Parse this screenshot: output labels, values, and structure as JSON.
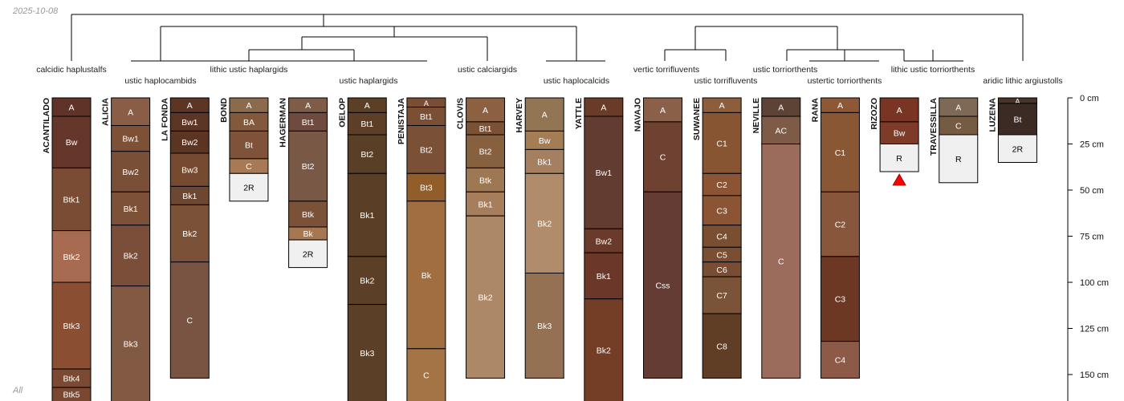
{
  "header": {
    "date": "2025-10-08"
  },
  "footer": {
    "subset_label": "All"
  },
  "depth_axis": {
    "unit": "cm",
    "ticks": [
      0,
      25,
      50,
      75,
      100,
      125,
      150
    ]
  },
  "chart_data": {
    "type": "soil-profile-sketch",
    "depth_unit": "cm",
    "dendrogram_labels": [
      "calcidic haplustalfs",
      "ustic haplocambids",
      "lithic ustic haplargids",
      "ustic haplargids",
      "ustic calciargids",
      "ustic haplocalcids",
      "vertic torrifluvents",
      "ustic torrifluvents",
      "ustic torriorthents",
      "ustertic torriorthents",
      "lithic ustic torriorthents",
      "aridic lithic argiustolls"
    ],
    "profiles": [
      {
        "name": "ACANTILADO",
        "horizons": [
          {
            "name": "A",
            "top": 0,
            "bottom": 10,
            "color": "#5f3328"
          },
          {
            "name": "Bw",
            "top": 10,
            "bottom": 38,
            "color": "#65372b"
          },
          {
            "name": "Btk1",
            "top": 38,
            "bottom": 72,
            "color": "#7a4c34"
          },
          {
            "name": "Btk2",
            "top": 72,
            "bottom": 100,
            "color": "#a66b51"
          },
          {
            "name": "Btk3",
            "top": 100,
            "bottom": 147,
            "color": "#8a4e33"
          },
          {
            "name": "Btk4",
            "top": 147,
            "bottom": 157,
            "color": "#7c4a33"
          },
          {
            "name": "Btk5",
            "top": 157,
            "bottom": 175,
            "color": "#7a4831"
          }
        ]
      },
      {
        "name": "ALICIA",
        "horizons": [
          {
            "name": "A",
            "top": 0,
            "bottom": 15,
            "color": "#8a5e46"
          },
          {
            "name": "Bw1",
            "top": 15,
            "bottom": 29,
            "color": "#7e5137"
          },
          {
            "name": "Bw2",
            "top": 29,
            "bottom": 51,
            "color": "#7a4f37"
          },
          {
            "name": "Bk1",
            "top": 51,
            "bottom": 69,
            "color": "#7d5138"
          },
          {
            "name": "Bk2",
            "top": 69,
            "bottom": 102,
            "color": "#7b4e39"
          },
          {
            "name": "Bk3",
            "top": 102,
            "bottom": 175,
            "color": "#825a43"
          }
        ]
      },
      {
        "name": "LA FONDA",
        "horizons": [
          {
            "name": "A",
            "top": 0,
            "bottom": 8,
            "color": "#5d3623"
          },
          {
            "name": "Bw1",
            "top": 8,
            "bottom": 18,
            "color": "#5d3524"
          },
          {
            "name": "Bw2",
            "top": 18,
            "bottom": 30,
            "color": "#5b3422"
          },
          {
            "name": "Bw3",
            "top": 30,
            "bottom": 48,
            "color": "#754a31"
          },
          {
            "name": "Bk1",
            "top": 48,
            "bottom": 58,
            "color": "#6e4733"
          },
          {
            "name": "Bk2",
            "top": 58,
            "bottom": 89,
            "color": "#7b5238"
          },
          {
            "name": "C",
            "top": 89,
            "bottom": 152,
            "color": "#7a5443"
          }
        ]
      },
      {
        "name": "BOND",
        "horizons": [
          {
            "name": "A",
            "top": 0,
            "bottom": 8,
            "color": "#8c6a4c"
          },
          {
            "name": "BA",
            "top": 8,
            "bottom": 18,
            "color": "#82593b"
          },
          {
            "name": "Bt",
            "top": 18,
            "bottom": 33,
            "color": "#7e5339"
          },
          {
            "name": "C",
            "top": 33,
            "bottom": 41,
            "color": "#a77a55"
          },
          {
            "name": "2R",
            "top": 41,
            "bottom": 56,
            "color": "#f0f0f0"
          }
        ]
      },
      {
        "name": "HAGERMAN",
        "horizons": [
          {
            "name": "A",
            "top": 0,
            "bottom": 8,
            "color": "#7e5c47"
          },
          {
            "name": "Bt1",
            "top": 8,
            "bottom": 18,
            "color": "#6e4b3e"
          },
          {
            "name": "Bt2",
            "top": 18,
            "bottom": 56,
            "color": "#7a5846"
          },
          {
            "name": "Btk",
            "top": 56,
            "bottom": 70,
            "color": "#7b5137"
          },
          {
            "name": "Bk",
            "top": 70,
            "bottom": 77,
            "color": "#a57852"
          },
          {
            "name": "2R",
            "top": 77,
            "bottom": 92,
            "color": "#f0f0f0"
          }
        ]
      },
      {
        "name": "OELOP",
        "horizons": [
          {
            "name": "A",
            "top": 0,
            "bottom": 8,
            "color": "#5c4026"
          },
          {
            "name": "Bt1",
            "top": 8,
            "bottom": 20,
            "color": "#5c3f26"
          },
          {
            "name": "Bt2",
            "top": 20,
            "bottom": 41,
            "color": "#5a3f27"
          },
          {
            "name": "Bk1",
            "top": 41,
            "bottom": 86,
            "color": "#5a3f26"
          },
          {
            "name": "Bk2",
            "top": 86,
            "bottom": 112,
            "color": "#5b4027"
          },
          {
            "name": "Bk3",
            "top": 112,
            "bottom": 175,
            "color": "#5b4027"
          }
        ]
      },
      {
        "name": "PENISTAJA",
        "horizons": [
          {
            "name": "A",
            "top": 0,
            "bottom": 5,
            "color": "#7a4e34"
          },
          {
            "name": "Bt1",
            "top": 5,
            "bottom": 15,
            "color": "#7b4f34"
          },
          {
            "name": "Bt2",
            "top": 15,
            "bottom": 41,
            "color": "#7a5037"
          },
          {
            "name": "Bt3",
            "top": 41,
            "bottom": 56,
            "color": "#915e2a"
          },
          {
            "name": "Bk",
            "top": 56,
            "bottom": 136,
            "color": "#a06e3f"
          },
          {
            "name": "C",
            "top": 136,
            "bottom": 175,
            "color": "#a47444"
          }
        ]
      },
      {
        "name": "CLOVIS",
        "horizons": [
          {
            "name": "A",
            "top": 0,
            "bottom": 13,
            "color": "#8b6141"
          },
          {
            "name": "Bt1",
            "top": 13,
            "bottom": 20,
            "color": "#7b5236"
          },
          {
            "name": "Bt2",
            "top": 20,
            "bottom": 38,
            "color": "#86603f"
          },
          {
            "name": "Btk",
            "top": 38,
            "bottom": 51,
            "color": "#9e7852"
          },
          {
            "name": "Bk1",
            "top": 51,
            "bottom": 64,
            "color": "#a77e5c"
          },
          {
            "name": "Bk2",
            "top": 64,
            "bottom": 152,
            "color": "#ad8866"
          }
        ]
      },
      {
        "name": "HARVEY",
        "horizons": [
          {
            "name": "A",
            "top": 0,
            "bottom": 18,
            "color": "#927553"
          },
          {
            "name": "Bw",
            "top": 18,
            "bottom": 28,
            "color": "#a47d54"
          },
          {
            "name": "Bk1",
            "top": 28,
            "bottom": 41,
            "color": "#a48060"
          },
          {
            "name": "Bk2",
            "top": 41,
            "bottom": 95,
            "color": "#b08c6b"
          },
          {
            "name": "Bk3",
            "top": 95,
            "bottom": 152,
            "color": "#957153"
          }
        ]
      },
      {
        "name": "YATTLE",
        "horizons": [
          {
            "name": "A",
            "top": 0,
            "bottom": 10,
            "color": "#6b3b29"
          },
          {
            "name": "Bw1",
            "top": 10,
            "bottom": 71,
            "color": "#623b31"
          },
          {
            "name": "Bw2",
            "top": 71,
            "bottom": 84,
            "color": "#6a3a2a"
          },
          {
            "name": "Bk1",
            "top": 84,
            "bottom": 109,
            "color": "#6b3728"
          },
          {
            "name": "Bk2",
            "top": 109,
            "bottom": 175,
            "color": "#743d25"
          }
        ]
      },
      {
        "name": "NAVAJO",
        "horizons": [
          {
            "name": "A",
            "top": 0,
            "bottom": 13,
            "color": "#8b6048"
          },
          {
            "name": "C",
            "top": 13,
            "bottom": 51,
            "color": "#6f4131"
          },
          {
            "name": "Css",
            "top": 51,
            "bottom": 152,
            "color": "#653c33"
          }
        ]
      },
      {
        "name": "SUWANEE",
        "horizons": [
          {
            "name": "A",
            "top": 0,
            "bottom": 8,
            "color": "#8d5e3c"
          },
          {
            "name": "C1",
            "top": 8,
            "bottom": 41,
            "color": "#885532"
          },
          {
            "name": "C2",
            "top": 41,
            "bottom": 53,
            "color": "#8b5535"
          },
          {
            "name": "C3",
            "top": 53,
            "bottom": 69,
            "color": "#8b5535"
          },
          {
            "name": "C4",
            "top": 69,
            "bottom": 81,
            "color": "#7a4e31"
          },
          {
            "name": "C5",
            "top": 81,
            "bottom": 89,
            "color": "#7a4e31"
          },
          {
            "name": "C6",
            "top": 89,
            "bottom": 97,
            "color": "#784d33"
          },
          {
            "name": "C7",
            "top": 97,
            "bottom": 117,
            "color": "#7b5338"
          },
          {
            "name": "C8",
            "top": 117,
            "bottom": 152,
            "color": "#603e26"
          }
        ]
      },
      {
        "name": "NEVILLE",
        "horizons": [
          {
            "name": "A",
            "top": 0,
            "bottom": 10,
            "color": "#5d4336"
          },
          {
            "name": "AC",
            "top": 10,
            "bottom": 25,
            "color": "#7d5b47"
          },
          {
            "name": "C",
            "top": 25,
            "bottom": 152,
            "color": "#9b6c5c"
          }
        ]
      },
      {
        "name": "RANA",
        "horizons": [
          {
            "name": "A",
            "top": 0,
            "bottom": 8,
            "color": "#8e5736"
          },
          {
            "name": "C1",
            "top": 8,
            "bottom": 51,
            "color": "#8a5735"
          },
          {
            "name": "C2",
            "top": 51,
            "bottom": 86,
            "color": "#88563a"
          },
          {
            "name": "C3",
            "top": 86,
            "bottom": 132,
            "color": "#6c3723"
          },
          {
            "name": "C4",
            "top": 132,
            "bottom": 152,
            "color": "#8c5a47"
          }
        ]
      },
      {
        "name": "RIZOZO",
        "marker": "bottom-triangle",
        "horizons": [
          {
            "name": "A",
            "top": 0,
            "bottom": 13,
            "color": "#7a3423"
          },
          {
            "name": "Bw",
            "top": 13,
            "bottom": 25,
            "color": "#7e3b27"
          },
          {
            "name": "R",
            "top": 25,
            "bottom": 40,
            "color": "#f0f0f0"
          }
        ]
      },
      {
        "name": "TRAVESSILLA",
        "horizons": [
          {
            "name": "A",
            "top": 0,
            "bottom": 10,
            "color": "#7e6856"
          },
          {
            "name": "C",
            "top": 10,
            "bottom": 20,
            "color": "#755b41"
          },
          {
            "name": "R",
            "top": 20,
            "bottom": 46,
            "color": "#f0f0f0"
          }
        ]
      },
      {
        "name": "LUZENA",
        "horizons": [
          {
            "name": "A",
            "top": 0,
            "bottom": 3,
            "color": "#4a3329"
          },
          {
            "name": "Bt",
            "top": 3,
            "bottom": 20,
            "color": "#3c2a24"
          },
          {
            "name": "2R",
            "top": 20,
            "bottom": 35,
            "color": "#f0f0f0"
          }
        ]
      }
    ]
  }
}
